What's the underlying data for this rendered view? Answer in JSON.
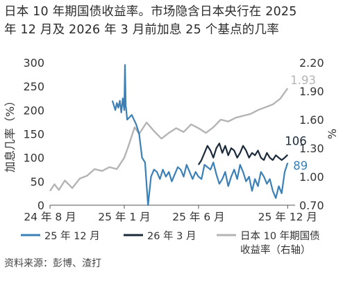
{
  "title_line1": "日本 10 年期国债收益率。市场隐含日本央行在 2025",
  "title_line2": "年 12 月及 2026 年 3 月前加息 25 个基点的几率",
  "source": "资料来源：彭博、渣打",
  "colors": {
    "dec25": "#3a7fb5",
    "mar26": "#1b2a3a",
    "jgb": "#b4b4b4",
    "axis": "#555555",
    "text": "#333333"
  },
  "chart_data": {
    "type": "line",
    "title": "日本 10 年期国债收益率。市场隐含日本央行在 2025 年 12 月及 2026 年 3 月前加息 25 个基点的几率",
    "xlabel": "",
    "ylabel_left": "加息几率（%）",
    "ylabel_right": "%",
    "x_ticks": [
      "24 年 8 月",
      "25 年 1 月",
      "25 年 6 月",
      "25 年 12 月"
    ],
    "x_tick_months": [
      0,
      5,
      10,
      16
    ],
    "ylim_left": [
      0,
      300
    ],
    "y_ticks_left": [
      "0",
      "50",
      "100",
      "150",
      "200",
      "250",
      "300"
    ],
    "ylim_right": [
      0.7,
      2.2
    ],
    "y_ticks_right": [
      "0.70",
      "1.00",
      "1.30",
      "1.60",
      "1.90",
      "2.20"
    ],
    "legend": [
      "25 年 12 月",
      "26 年 3 月",
      "日本 10 年期国债",
      "收益率（右轴）"
    ],
    "series": [
      {
        "name": "日本 10 年期国债收益率（右轴）",
        "axis": "right",
        "end_label": "1.93",
        "x_months": [
          0,
          0.3,
          0.6,
          1.0,
          1.5,
          2.0,
          2.5,
          3.0,
          3.5,
          4.0,
          4.5,
          5.0,
          5.3,
          5.7,
          6.0,
          6.5,
          7.0,
          7.5,
          8.0,
          8.5,
          9.0,
          9.5,
          10.0,
          10.5,
          11.0,
          11.5,
          12.0,
          12.5,
          13.0,
          13.5,
          14.0,
          14.5,
          15.0,
          15.5,
          16.0
        ],
        "values": [
          0.85,
          0.92,
          0.86,
          0.96,
          0.88,
          0.98,
          1.01,
          1.08,
          1.06,
          1.1,
          1.08,
          1.2,
          1.33,
          1.52,
          1.45,
          1.57,
          1.48,
          1.4,
          1.46,
          1.51,
          1.47,
          1.55,
          1.51,
          1.46,
          1.52,
          1.6,
          1.58,
          1.62,
          1.64,
          1.66,
          1.7,
          1.73,
          1.76,
          1.82,
          1.93
        ]
      },
      {
        "name": "25 年 12 月",
        "axis": "left",
        "end_label": "89",
        "x_months": [
          4.2,
          4.4,
          4.5,
          4.6,
          4.7,
          4.8,
          4.9,
          5.0,
          5.05,
          5.1,
          5.2,
          5.5,
          5.8,
          6.0,
          6.2,
          6.4,
          6.6,
          6.8,
          7.0,
          7.2,
          7.4,
          7.6,
          7.8,
          8.0,
          8.2,
          8.4,
          8.6,
          8.8,
          9.0,
          9.2,
          9.4,
          9.6,
          9.8,
          10.0,
          10.2,
          10.4,
          10.6,
          10.8,
          11.0,
          11.2,
          11.4,
          11.6,
          11.8,
          12.0,
          12.2,
          12.4,
          12.6,
          12.8,
          13.0,
          13.2,
          13.4,
          13.6,
          13.8,
          14.0,
          14.2,
          14.4,
          14.6,
          14.8,
          15.0,
          15.2,
          15.4,
          15.6,
          15.8,
          16.0
        ],
        "values": [
          220,
          200,
          215,
          205,
          220,
          195,
          225,
          200,
          295,
          210,
          180,
          190,
          170,
          150,
          100,
          90,
          0,
          60,
          75,
          70,
          55,
          75,
          60,
          70,
          50,
          65,
          80,
          75,
          60,
          85,
          70,
          55,
          70,
          60,
          55,
          85,
          80,
          75,
          90,
          65,
          45,
          55,
          70,
          40,
          60,
          75,
          55,
          85,
          70,
          50,
          60,
          30,
          55,
          40,
          70,
          60,
          45,
          55,
          30,
          15,
          40,
          25,
          70,
          89
        ]
      },
      {
        "name": "26 年 3 月",
        "axis": "left",
        "end_label": "106",
        "x_months": [
          10.0,
          10.2,
          10.4,
          10.6,
          10.8,
          11.0,
          11.2,
          11.4,
          11.6,
          11.8,
          12.0,
          12.2,
          12.4,
          12.6,
          12.8,
          13.0,
          13.2,
          13.4,
          13.6,
          13.8,
          14.0,
          14.2,
          14.4,
          14.6,
          14.8,
          15.0,
          15.2,
          15.4,
          15.6,
          15.8,
          16.0
        ],
        "values": [
          85,
          95,
          110,
          125,
          115,
          100,
          120,
          130,
          110,
          125,
          105,
          120,
          115,
          100,
          110,
          125,
          115,
          100,
          110,
          105,
          115,
          100,
          95,
          110,
          100,
          95,
          105,
          100,
          95,
          100,
          106
        ]
      }
    ]
  }
}
